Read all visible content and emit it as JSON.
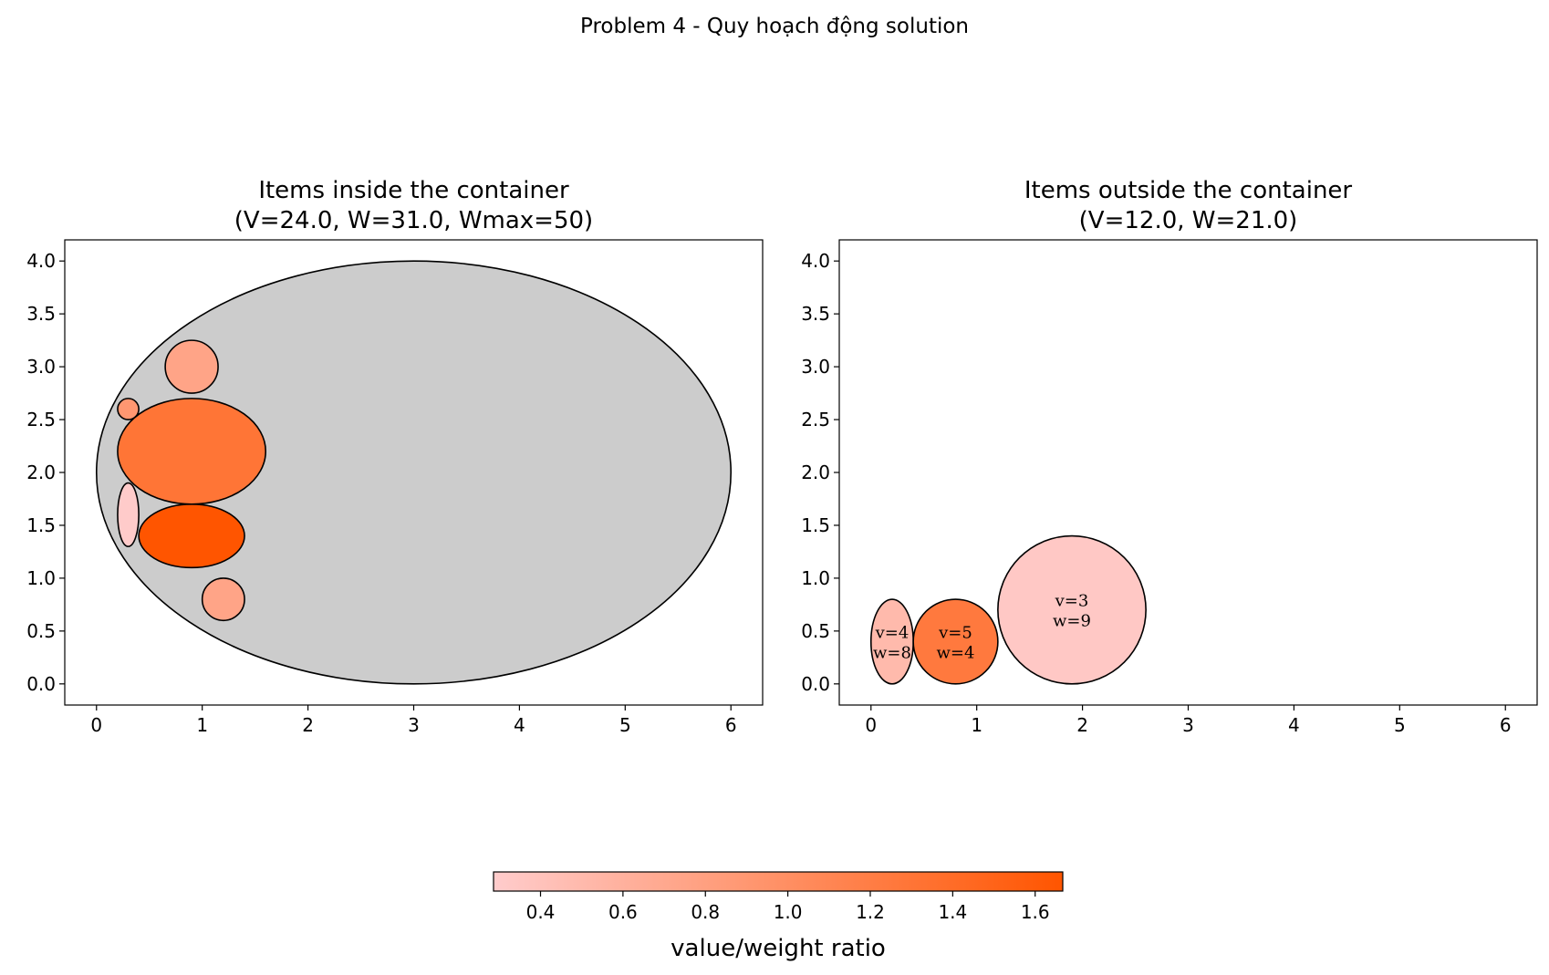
{
  "suptitle": "Problem 4 - Quy hoạch động solution",
  "colorbar": {
    "label": "value/weight ratio",
    "min": 0.286,
    "max": 1.667,
    "ticks": [
      "0.4",
      "0.6",
      "0.8",
      "1.0",
      "1.2",
      "1.4",
      "1.6"
    ],
    "color_low": "#ffcccc",
    "color_high": "#ff5500"
  },
  "chart_data": [
    {
      "type": "scatter",
      "panel": "inside",
      "title_line1": "Items inside the container",
      "title_line2": "(V=24.0, W=31.0, Wmax=50)",
      "xlim": [
        -0.3,
        6.3
      ],
      "ylim": [
        -0.2,
        4.2
      ],
      "xticks": [
        "0",
        "1",
        "2",
        "3",
        "4",
        "5",
        "6"
      ],
      "yticks": [
        "0.0",
        "0.5",
        "1.0",
        "1.5",
        "2.0",
        "2.5",
        "3.0",
        "3.5",
        "4.0"
      ],
      "container": {
        "cx": 3.0,
        "cy": 2.0,
        "rx": 3.0,
        "ry": 2.0,
        "color": "#cccccc"
      },
      "items": [
        {
          "cx": 0.9,
          "cy": 3.0,
          "rx": 0.25,
          "ry": 0.25,
          "ratio": 0.75
        },
        {
          "cx": 0.3,
          "cy": 2.6,
          "rx": 0.1,
          "ry": 0.1,
          "ratio": 0.9
        },
        {
          "cx": 0.9,
          "cy": 2.2,
          "rx": 0.7,
          "ry": 0.5,
          "ratio": 1.3
        },
        {
          "cx": 0.3,
          "cy": 1.6,
          "rx": 0.1,
          "ry": 0.3,
          "ratio": 0.3
        },
        {
          "cx": 0.9,
          "cy": 1.4,
          "rx": 0.5,
          "ry": 0.3,
          "ratio": 1.667
        },
        {
          "cx": 1.2,
          "cy": 0.8,
          "rx": 0.2,
          "ry": 0.2,
          "ratio": 0.75
        }
      ]
    },
    {
      "type": "scatter",
      "panel": "outside",
      "title_line1": "Items outside the container",
      "title_line2": "(V=12.0, W=21.0)",
      "xlim": [
        -0.3,
        6.3
      ],
      "ylim": [
        -0.2,
        4.2
      ],
      "xticks": [
        "0",
        "1",
        "2",
        "3",
        "4",
        "5",
        "6"
      ],
      "yticks": [
        "0.0",
        "0.5",
        "1.0",
        "1.5",
        "2.0",
        "2.5",
        "3.0",
        "3.5",
        "4.0"
      ],
      "items": [
        {
          "cx": 0.2,
          "cy": 0.4,
          "rx": 0.2,
          "ry": 0.4,
          "ratio": 0.5,
          "v_label": "v=4",
          "w_label": "w=8"
        },
        {
          "cx": 0.8,
          "cy": 0.4,
          "rx": 0.4,
          "ry": 0.4,
          "ratio": 1.25,
          "v_label": "v=5",
          "w_label": "w=4"
        },
        {
          "cx": 1.9,
          "cy": 0.7,
          "rx": 0.7,
          "ry": 0.7,
          "ratio": 0.333,
          "v_label": "v=3",
          "w_label": "w=9"
        }
      ]
    }
  ]
}
